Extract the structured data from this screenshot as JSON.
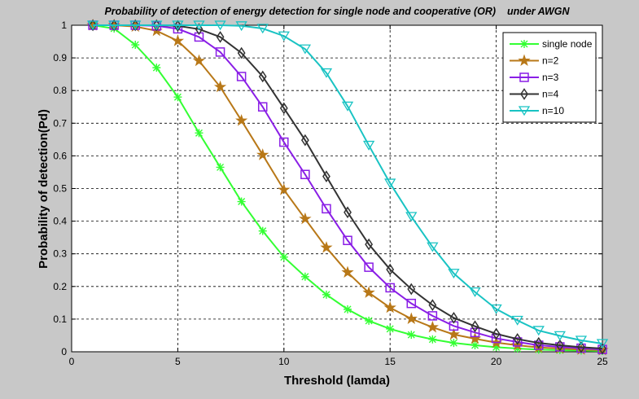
{
  "chart_data": {
    "type": "line",
    "title": "Probability of detection of energy detection for single node and cooperative (OR)    under AWGN",
    "xlabel": "Threshold (lamda)",
    "ylabel": "Probability of detection(Pd)",
    "xlim": [
      0,
      25
    ],
    "ylim": [
      0,
      1
    ],
    "xticks": [
      0,
      5,
      10,
      15,
      20,
      25
    ],
    "yticks": [
      0,
      0.1,
      0.2,
      0.3,
      0.4,
      0.5,
      0.6,
      0.7,
      0.8,
      0.9,
      1
    ],
    "grid": true,
    "legend_position": "top-right",
    "x": [
      1,
      2,
      3,
      4,
      5,
      6,
      7,
      8,
      9,
      10,
      11,
      12,
      13,
      14,
      15,
      16,
      17,
      18,
      19,
      20,
      21,
      22,
      23,
      24,
      25
    ],
    "series": [
      {
        "name": "single node",
        "color": "#33ff33",
        "marker": "star",
        "values": [
          1.0,
          0.99,
          0.94,
          0.87,
          0.78,
          0.67,
          0.565,
          0.46,
          0.37,
          0.29,
          0.23,
          0.175,
          0.13,
          0.095,
          0.07,
          0.052,
          0.038,
          0.027,
          0.02,
          0.014,
          0.01,
          0.0067,
          0.005,
          0.0036,
          0.0025
        ]
      },
      {
        "name": "n=2",
        "color": "#b87818",
        "marker": "pentagram",
        "values": [
          1.0,
          1.0,
          0.996,
          0.983,
          0.952,
          0.891,
          0.811,
          0.708,
          0.603,
          0.496,
          0.407,
          0.319,
          0.243,
          0.181,
          0.135,
          0.101,
          0.075,
          0.053,
          0.04,
          0.028,
          0.02,
          0.013,
          0.01,
          0.007,
          0.005
        ]
      },
      {
        "name": "n=3",
        "color": "#8a1ee6",
        "marker": "square",
        "values": [
          1.0,
          1.0,
          1.0,
          0.998,
          0.989,
          0.964,
          0.918,
          0.843,
          0.75,
          0.642,
          0.543,
          0.438,
          0.341,
          0.259,
          0.196,
          0.148,
          0.11,
          0.079,
          0.059,
          0.041,
          0.03,
          0.02,
          0.015,
          0.011,
          0.007
        ]
      },
      {
        "name": "n=4",
        "color": "#333333",
        "marker": "diamond",
        "values": [
          1.0,
          1.0,
          1.0,
          1.0,
          0.998,
          0.988,
          0.964,
          0.915,
          0.843,
          0.746,
          0.648,
          0.537,
          0.427,
          0.329,
          0.252,
          0.192,
          0.143,
          0.104,
          0.078,
          0.055,
          0.039,
          0.027,
          0.02,
          0.014,
          0.01
        ]
      },
      {
        "name": "n=10",
        "color": "#19c3c3",
        "marker": "triangle-down",
        "values": [
          1.0,
          1.0,
          1.0,
          1.0,
          1.0,
          1.0,
          1.0,
          0.998,
          0.99,
          0.967,
          0.927,
          0.854,
          0.752,
          0.632,
          0.516,
          0.414,
          0.321,
          0.24,
          0.183,
          0.131,
          0.096,
          0.065,
          0.049,
          0.035,
          0.025
        ]
      }
    ]
  }
}
